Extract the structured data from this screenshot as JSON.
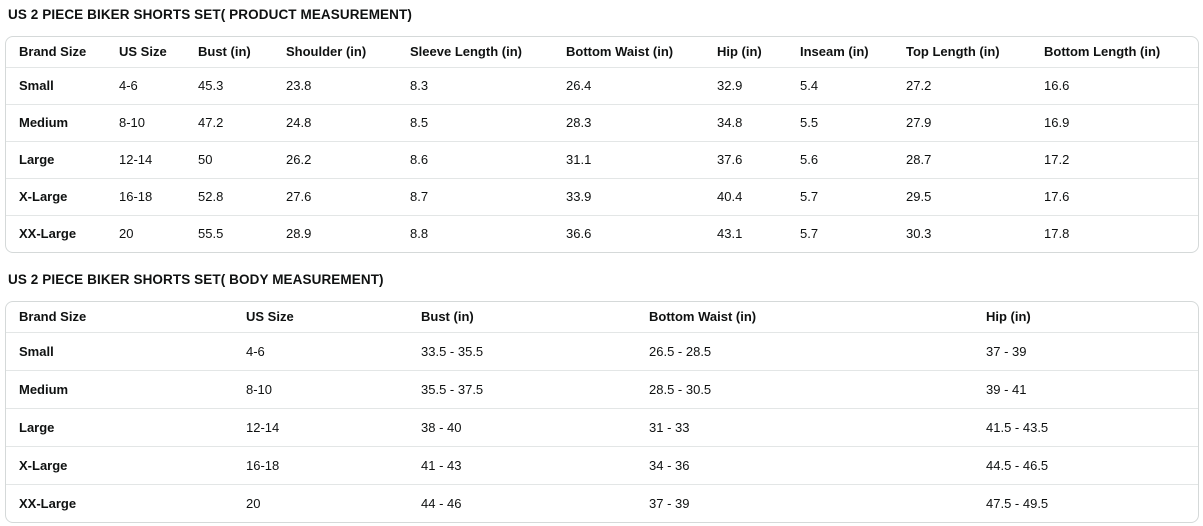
{
  "colors": {
    "text": "#0f1111",
    "table_border": "#d5d9d9",
    "row_divider": "#e3e6e6",
    "background": "#ffffff"
  },
  "tables": [
    {
      "title": "US 2 PIECE BIKER SHORTS SET( PRODUCT MEASUREMENT)",
      "columns": [
        "Brand Size",
        "US Size",
        "Bust (in)",
        "Shoulder (in)",
        "Sleeve Length (in)",
        "Bottom Waist (in)",
        "Hip (in)",
        "Inseam (in)",
        "Top Length (in)",
        "Bottom Length (in)"
      ],
      "rows": [
        [
          "Small",
          "4-6",
          "45.3",
          "23.8",
          "8.3",
          "26.4",
          "32.9",
          "5.4",
          "27.2",
          "16.6"
        ],
        [
          "Medium",
          "8-10",
          "47.2",
          "24.8",
          "8.5",
          "28.3",
          "34.8",
          "5.5",
          "27.9",
          "16.9"
        ],
        [
          "Large",
          "12-14",
          "50",
          "26.2",
          "8.6",
          "31.1",
          "37.6",
          "5.6",
          "28.7",
          "17.2"
        ],
        [
          "X-Large",
          "16-18",
          "52.8",
          "27.6",
          "8.7",
          "33.9",
          "40.4",
          "5.7",
          "29.5",
          "17.6"
        ],
        [
          "XX-Large",
          "20",
          "55.5",
          "28.9",
          "8.8",
          "36.6",
          "43.1",
          "5.7",
          "30.3",
          "17.8"
        ]
      ]
    },
    {
      "title": "US 2 PIECE BIKER SHORTS SET( BODY MEASUREMENT)",
      "columns": [
        "Brand Size",
        "US Size",
        "Bust (in)",
        "Bottom Waist (in)",
        "Hip (in)"
      ],
      "rows": [
        [
          "Small",
          "4-6",
          "33.5 - 35.5",
          "26.5 - 28.5",
          "37 - 39"
        ],
        [
          "Medium",
          "8-10",
          "35.5 - 37.5",
          "28.5 - 30.5",
          "39 - 41"
        ],
        [
          "Large",
          "12-14",
          "38 - 40",
          "31 - 33",
          "41.5 - 43.5"
        ],
        [
          "X-Large",
          "16-18",
          "41 - 43",
          "34 - 36",
          "44.5 - 46.5"
        ],
        [
          "XX-Large",
          "20",
          "44 - 46",
          "37 - 39",
          "47.5 - 49.5"
        ]
      ]
    }
  ]
}
